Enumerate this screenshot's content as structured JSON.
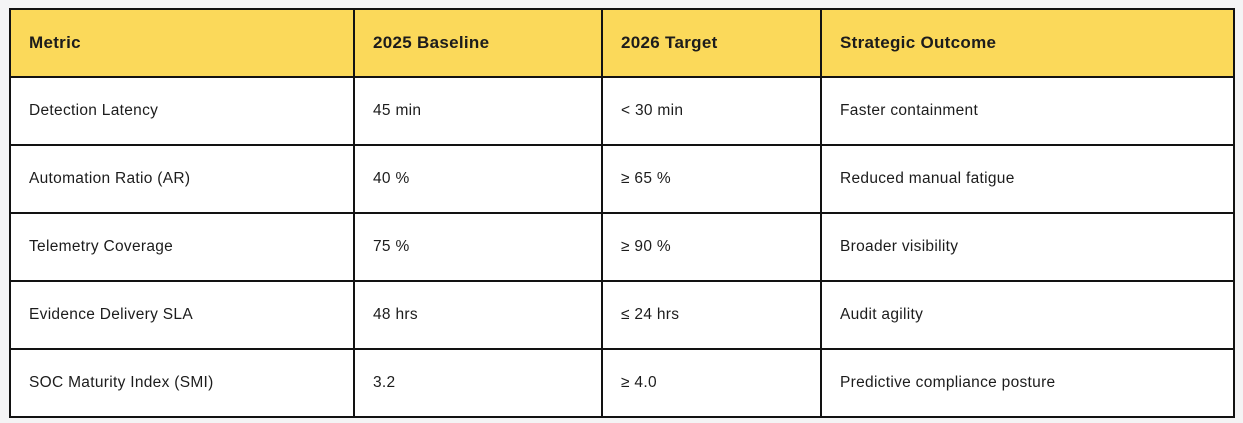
{
  "page": {
    "background_color": "#f4f4f5"
  },
  "table": {
    "header_background_color": "#fbd95a",
    "border_color": "#121212",
    "columns": {
      "metric": "Metric",
      "baseline": "2025 Baseline",
      "target": "2026 Target",
      "outcome": "Strategic Outcome"
    },
    "rows": [
      {
        "metric": "Detection Latency",
        "baseline": "45 min",
        "target": "< 30 min",
        "outcome": "Faster containment"
      },
      {
        "metric": "Automation Ratio (AR)",
        "baseline": "40 %",
        "target": "≥ 65 %",
        "outcome": "Reduced manual fatigue"
      },
      {
        "metric": "Telemetry Coverage",
        "baseline": "75 %",
        "target": "≥ 90 %",
        "outcome": "Broader visibility"
      },
      {
        "metric": "Evidence Delivery SLA",
        "baseline": "48 hrs",
        "target": "≤ 24 hrs",
        "outcome": "Audit agility"
      },
      {
        "metric": "SOC Maturity Index (SMI)",
        "baseline": "3.2",
        "target": "≥ 4.0",
        "outcome": "Predictive compliance posture"
      }
    ]
  }
}
